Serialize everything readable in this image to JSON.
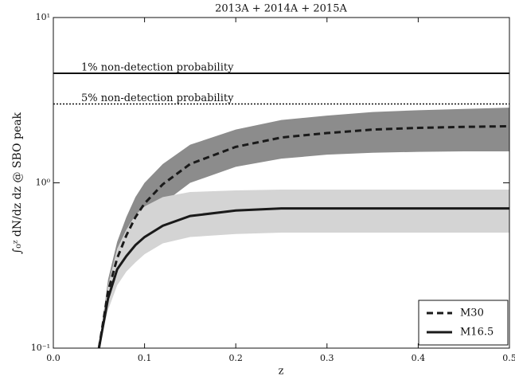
{
  "chart_data": {
    "type": "line",
    "title": "2013A + 2014A + 2015A",
    "xlabel": "z",
    "ylabel": "∫₀ᶻ dN/dz dz @ SBO peak",
    "ylog": true,
    "xlim": [
      0,
      0.5
    ],
    "ylim": [
      0.1,
      10
    ],
    "xticks": [
      {
        "value": 0,
        "label": "0.0"
      },
      0.1,
      0.2,
      0.3,
      0.4,
      0.5
    ],
    "yticks": [
      {
        "value": 0.1,
        "label": "10⁻¹"
      },
      {
        "value": 1,
        "label": "10⁰"
      },
      {
        "value": 10,
        "label": "10¹"
      }
    ],
    "legend": "lower right",
    "x": [
      0.05,
      0.06,
      0.07,
      0.08,
      0.09,
      0.1,
      0.12,
      0.15,
      0.2,
      0.25,
      0.3,
      0.35,
      0.4,
      0.45,
      0.5
    ],
    "series": [
      {
        "name": "M30",
        "color": "#1a1a1a",
        "style": "dashed",
        "band_color": "#8c8c8c",
        "values": [
          0.1,
          0.22,
          0.35,
          0.48,
          0.62,
          0.75,
          0.98,
          1.3,
          1.65,
          1.88,
          2.0,
          2.1,
          2.15,
          2.18,
          2.2
        ],
        "band_upper": [
          0.1,
          0.26,
          0.44,
          0.62,
          0.82,
          1.0,
          1.3,
          1.7,
          2.1,
          2.4,
          2.55,
          2.68,
          2.75,
          2.8,
          2.85
        ],
        "band_lower": [
          0.1,
          0.2,
          0.3,
          0.38,
          0.46,
          0.55,
          0.75,
          1.0,
          1.25,
          1.4,
          1.48,
          1.52,
          1.54,
          1.55,
          1.55
        ]
      },
      {
        "name": "M16.5",
        "color": "#1a1a1a",
        "style": "solid",
        "band_color": "#d4d4d4",
        "values": [
          0.1,
          0.2,
          0.3,
          0.36,
          0.42,
          0.47,
          0.55,
          0.63,
          0.68,
          0.7,
          0.7,
          0.7,
          0.7,
          0.7,
          0.7
        ],
        "band_upper": [
          0.1,
          0.24,
          0.4,
          0.52,
          0.64,
          0.72,
          0.82,
          0.88,
          0.9,
          0.91,
          0.91,
          0.91,
          0.91,
          0.91,
          0.91
        ],
        "band_lower": [
          0.1,
          0.17,
          0.24,
          0.29,
          0.33,
          0.37,
          0.43,
          0.47,
          0.49,
          0.5,
          0.5,
          0.5,
          0.5,
          0.5,
          0.5
        ]
      }
    ],
    "hlines": [
      {
        "value": 4.6,
        "label": "1% non-detection probability",
        "style": "solid"
      },
      {
        "value": 3.0,
        "label": "5% non-detection probability",
        "style": "dotted"
      }
    ]
  }
}
